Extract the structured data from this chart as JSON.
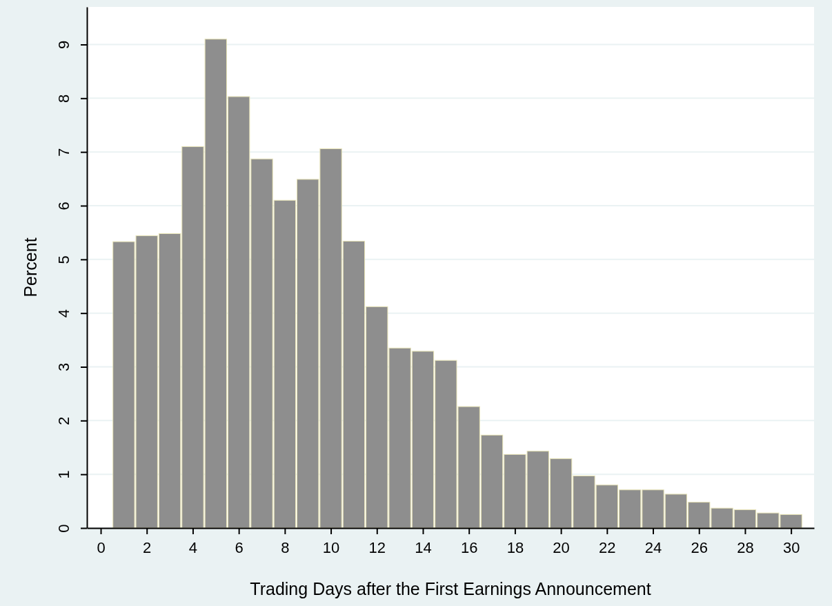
{
  "chart_data": {
    "type": "histogram",
    "xlabel": "Trading Days after the First Earnings Announcement",
    "ylabel": "Percent",
    "bins": [
      0.5,
      1.5,
      2.5,
      3.5,
      4.5,
      5.5,
      6.5,
      7.5,
      8.5,
      9.5,
      10.5,
      11.5,
      12.5,
      13.5,
      14.5,
      15.5,
      16.5,
      17.5,
      18.5,
      19.5,
      20.5,
      21.5,
      22.5,
      23.5,
      24.5,
      25.5,
      26.5,
      27.5,
      28.5,
      29.5,
      30.5
    ],
    "values": [
      5.33,
      5.44,
      5.48,
      7.1,
      9.1,
      8.03,
      6.87,
      6.1,
      6.49,
      7.06,
      5.34,
      4.12,
      3.35,
      3.29,
      3.12,
      2.26,
      1.73,
      1.37,
      1.43,
      1.29,
      0.97,
      0.8,
      0.71,
      0.71,
      0.63,
      0.48,
      0.37,
      0.34,
      0.28,
      0.25
    ],
    "color": "#8e8e8e",
    "xlim": [
      -0.6,
      31
    ],
    "ylim": [
      0,
      9.7
    ],
    "xticks": [
      0,
      2,
      4,
      6,
      8,
      10,
      12,
      14,
      16,
      18,
      20,
      22,
      24,
      26,
      28,
      30
    ],
    "yticks": [
      0,
      1,
      2,
      3,
      4,
      5,
      6,
      7,
      8,
      9
    ],
    "grid": "y"
  }
}
